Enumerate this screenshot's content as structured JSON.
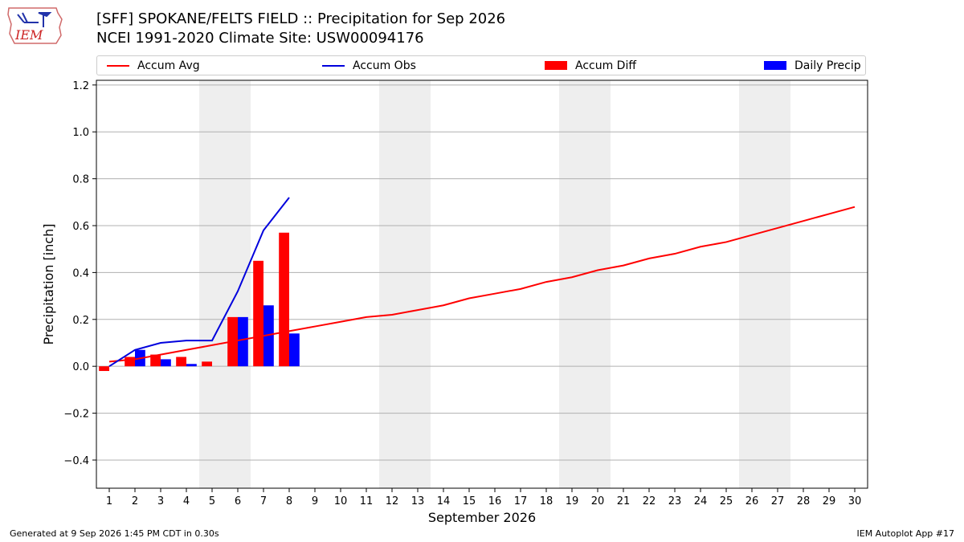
{
  "header": {
    "title_line1": "[SFF] SPOKANE/FELTS FIELD :: Precipitation for Sep 2026",
    "title_line2": "NCEI 1991-2020 Climate Site: USW00094176",
    "logo_text": "IEM"
  },
  "footer": {
    "generated": "Generated at 9 Sep 2026 1:45 PM CDT in 0.30s",
    "app": "IEM Autoplot App #17"
  },
  "colors": {
    "accum_avg": "#ff0000",
    "accum_obs": "#0000dd",
    "accum_diff": "#ff0000",
    "daily_precip": "#0000ff",
    "weekend_shade": "#eeeeee",
    "grid": "#b0b0b0"
  },
  "chart_data": {
    "type": "bar",
    "xlabel": "September 2026",
    "ylabel": "Precipitation [inch]",
    "xlim": [
      0.5,
      30.5
    ],
    "ylim": [
      -0.52,
      1.22
    ],
    "y_ticks": [
      -0.4,
      -0.2,
      0.0,
      0.2,
      0.4,
      0.6,
      0.8,
      1.0,
      1.2
    ],
    "y_tick_labels": [
      "−0.4",
      "−0.2",
      "0.0",
      "0.2",
      "0.4",
      "0.6",
      "0.8",
      "1.0",
      "1.2"
    ],
    "x_ticks": [
      1,
      2,
      3,
      4,
      5,
      6,
      7,
      8,
      9,
      10,
      11,
      12,
      13,
      14,
      15,
      16,
      17,
      18,
      19,
      20,
      21,
      22,
      23,
      24,
      25,
      26,
      27,
      28,
      29,
      30
    ],
    "grid": "horizontal",
    "legend_position": "top",
    "shaded_weekends": [
      [
        5,
        6
      ],
      [
        12,
        13
      ],
      [
        19,
        20
      ],
      [
        26,
        27
      ]
    ],
    "series": [
      {
        "name": "Accum Avg",
        "type": "line",
        "x": [
          1,
          2,
          3,
          4,
          5,
          6,
          7,
          8,
          9,
          10,
          11,
          12,
          13,
          14,
          15,
          16,
          17,
          18,
          19,
          20,
          21,
          22,
          23,
          24,
          25,
          26,
          27,
          28,
          29,
          30
        ],
        "values": [
          0.02,
          0.03,
          0.05,
          0.07,
          0.09,
          0.11,
          0.13,
          0.15,
          0.17,
          0.19,
          0.21,
          0.22,
          0.24,
          0.26,
          0.29,
          0.31,
          0.33,
          0.36,
          0.38,
          0.41,
          0.43,
          0.46,
          0.48,
          0.51,
          0.53,
          0.56,
          0.59,
          0.62,
          0.65,
          0.68
        ]
      },
      {
        "name": "Accum Obs",
        "type": "line",
        "x": [
          1,
          2,
          3,
          4,
          5,
          6,
          7,
          8
        ],
        "values": [
          0.0,
          0.07,
          0.1,
          0.11,
          0.11,
          0.32,
          0.58,
          0.72
        ]
      },
      {
        "name": "Accum Diff",
        "type": "bar",
        "x": [
          1,
          2,
          3,
          4,
          5,
          6,
          7,
          8
        ],
        "values": [
          -0.02,
          0.04,
          0.05,
          0.04,
          0.02,
          0.21,
          0.45,
          0.57
        ]
      },
      {
        "name": "Daily Precip",
        "type": "bar",
        "x": [
          1,
          2,
          3,
          4,
          5,
          6,
          7,
          8
        ],
        "values": [
          0.0,
          0.07,
          0.03,
          0.01,
          0.0,
          0.21,
          0.26,
          0.14
        ]
      }
    ]
  }
}
